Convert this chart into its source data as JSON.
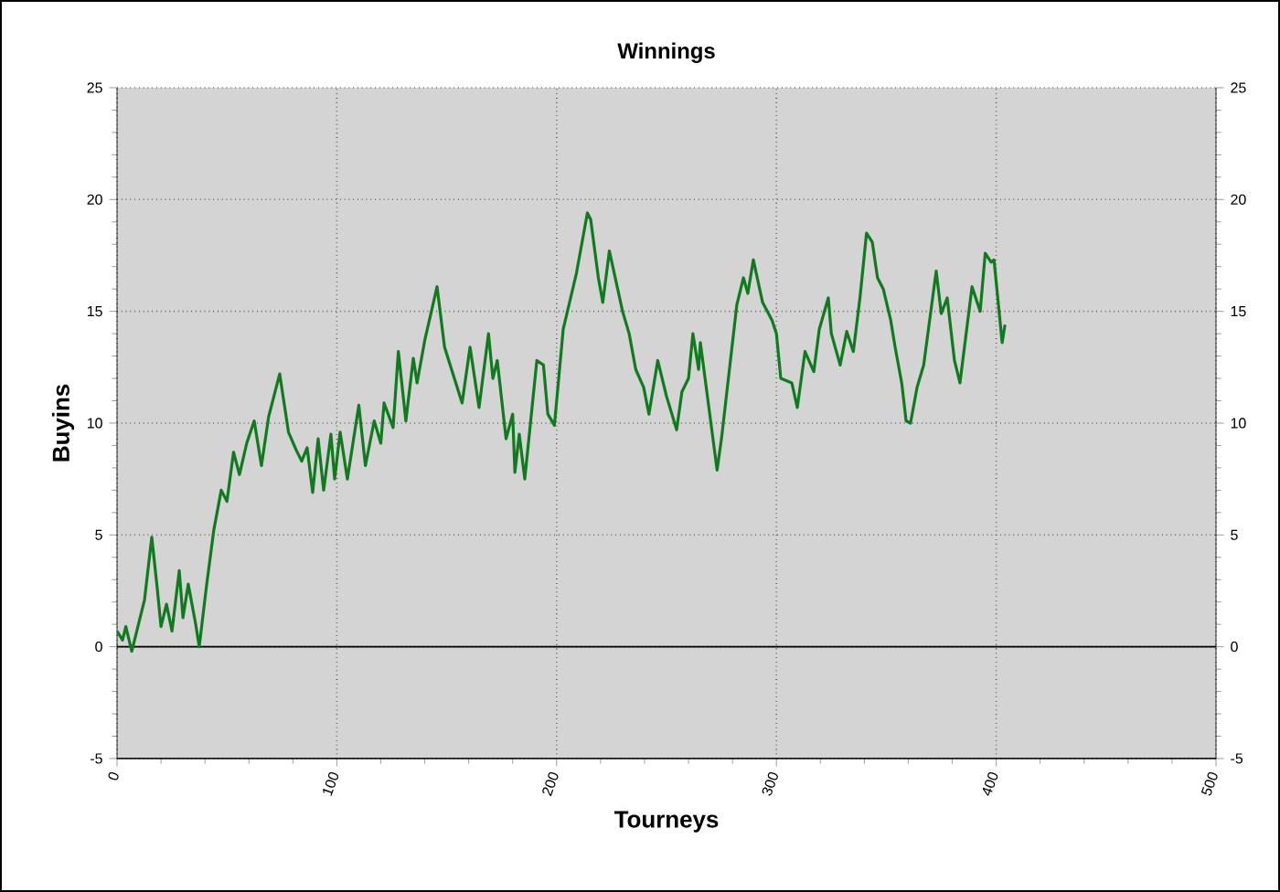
{
  "chart_data": {
    "type": "line",
    "title": "Winnings",
    "xlabel": "Tourneys",
    "ylabel": "Buyins",
    "x": [
      0,
      2.5,
      4,
      6.7,
      10,
      12.5,
      15.8,
      18.3,
      20,
      22.5,
      25,
      28.3,
      30,
      32.4,
      35.8,
      37.4,
      40.8,
      44,
      47.4,
      50,
      53,
      55.7,
      59,
      62.4,
      65.7,
      69,
      74,
      78,
      81.5,
      84,
      86.5,
      89,
      91.5,
      94,
      97.3,
      99,
      101.5,
      104.8,
      110,
      113,
      117,
      120,
      121.5,
      125.6,
      128,
      131.4,
      134.8,
      136.5,
      140,
      145.6,
      149,
      157,
      160.6,
      164.7,
      169,
      171,
      173,
      177,
      180,
      181,
      183,
      185.5,
      191,
      194,
      196,
      199,
      203,
      209,
      214,
      215.5,
      219,
      221,
      224,
      230,
      233,
      236,
      239.6,
      242,
      246,
      250,
      254.6,
      257,
      260,
      262,
      264.6,
      265.4,
      273,
      275,
      282,
      285,
      287,
      289.5,
      293.7,
      298,
      300,
      302,
      307,
      309.5,
      313,
      317,
      319.5,
      323.6,
      325,
      329,
      332,
      335,
      338,
      341,
      343.6,
      346,
      348.6,
      352,
      354,
      357,
      359,
      361,
      364,
      367,
      372.7,
      375,
      377.7,
      381,
      383.5,
      389,
      392.7,
      395,
      397.7,
      399,
      402.7,
      404
    ],
    "values": [
      0.7,
      0.3,
      0.9,
      -0.2,
      1.1,
      2.1,
      4.9,
      2.6,
      0.9,
      1.9,
      0.7,
      3.4,
      1.3,
      2.8,
      1.0,
      0,
      2.8,
      5.2,
      7.0,
      6.5,
      8.7,
      7.7,
      9.1,
      10.1,
      8.1,
      10.3,
      12.2,
      9.6,
      8.8,
      8.3,
      8.9,
      6.9,
      9.3,
      7.0,
      9.5,
      7.5,
      9.6,
      7.5,
      10.8,
      8.1,
      10.1,
      9.1,
      10.9,
      9.8,
      13.2,
      10.1,
      12.9,
      11.8,
      13.7,
      16.1,
      13.4,
      10.9,
      13.4,
      10.7,
      14.0,
      12.0,
      12.8,
      9.3,
      10.4,
      7.8,
      9.5,
      7.5,
      12.8,
      12.6,
      10.4,
      9.9,
      14.2,
      16.7,
      19.4,
      19.1,
      16.5,
      15.4,
      17.7,
      15.0,
      14.0,
      12.4,
      11.6,
      10.4,
      12.8,
      11.2,
      9.7,
      11.4,
      12.0,
      14.0,
      12.4,
      13.6,
      7.9,
      9.3,
      15.3,
      16.5,
      15.8,
      17.3,
      15.4,
      14.6,
      14.0,
      12.0,
      11.8,
      10.7,
      13.2,
      12.3,
      14.2,
      15.6,
      14.0,
      12.6,
      14.1,
      13.2,
      15.6,
      18.5,
      18.1,
      16.5,
      16.0,
      14.6,
      13.4,
      11.8,
      10.1,
      10.0,
      11.6,
      12.6,
      16.8,
      14.9,
      15.6,
      12.8,
      11.8,
      16.1,
      15.0,
      17.6,
      17.2,
      17.3,
      13.6,
      14.4
    ],
    "color": "#107a1e",
    "line_style": "solid",
    "marker": "none",
    "xlim": [
      0,
      500
    ],
    "xticks": [
      0,
      100,
      200,
      300,
      400,
      500
    ],
    "ylim": [
      -5,
      25
    ],
    "yticks": [
      -5,
      0,
      5,
      10,
      15,
      20,
      25
    ],
    "y2lim": [
      -5,
      25
    ],
    "y2ticks": [
      -5,
      0,
      5,
      10,
      15,
      20,
      25
    ],
    "grid": true,
    "ref_lines": [
      {
        "axis": "y",
        "value": 0,
        "color": "#000000",
        "line_style": "solid"
      }
    ]
  }
}
